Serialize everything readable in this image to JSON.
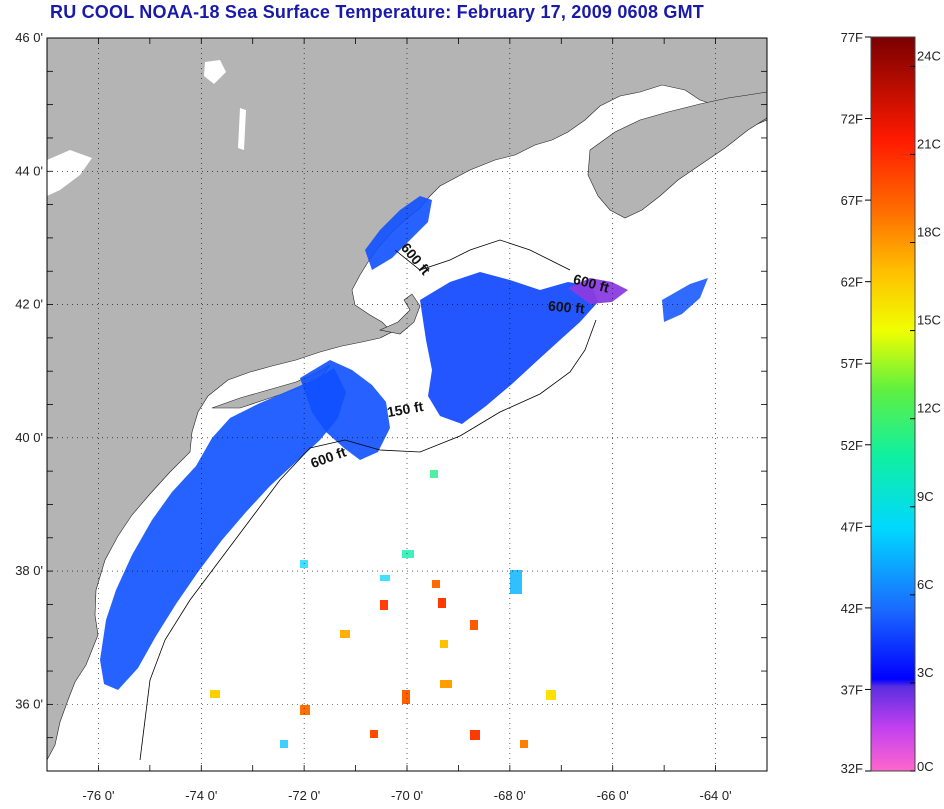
{
  "title": "RU COOL  NOAA-18  Sea Surface Temperature:  February 17, 2009 0608 GMT",
  "map": {
    "lat_ticks": [
      {
        "value": 46,
        "label": "46 0'"
      },
      {
        "value": 44,
        "label": "44 0'"
      },
      {
        "value": 42,
        "label": "42 0'"
      },
      {
        "value": 40,
        "label": "40 0'"
      },
      {
        "value": 38,
        "label": "38 0'"
      },
      {
        "value": 36,
        "label": "36 0'"
      }
    ],
    "lon_ticks": [
      {
        "value": -76,
        "label": "-76 0'"
      },
      {
        "value": -74,
        "label": "-74 0'"
      },
      {
        "value": -72,
        "label": "-72 0'"
      },
      {
        "value": -70,
        "label": "-70 0'"
      },
      {
        "value": -68,
        "label": "-68 0'"
      },
      {
        "value": -66,
        "label": "-66 0'"
      },
      {
        "value": -64,
        "label": "-64 0'"
      }
    ],
    "contour_labels": [
      {
        "text": "600 ft"
      },
      {
        "text": "600 ft"
      },
      {
        "text": "600 ft"
      },
      {
        "text": "150 ft"
      },
      {
        "text": "600 ft"
      }
    ],
    "colors": {
      "land": "#b4b4b4",
      "ocean": "#ffffff",
      "grid": "#000000",
      "title": "#1a1aa8"
    }
  },
  "colorbar": {
    "fahrenheit": [
      {
        "value": 77,
        "label": "77F"
      },
      {
        "value": 72,
        "label": "72F"
      },
      {
        "value": 67,
        "label": "67F"
      },
      {
        "value": 62,
        "label": "62F"
      },
      {
        "value": 57,
        "label": "57F"
      },
      {
        "value": 52,
        "label": "52F"
      },
      {
        "value": 47,
        "label": "47F"
      },
      {
        "value": 42,
        "label": "42F"
      },
      {
        "value": 37,
        "label": "37F"
      },
      {
        "value": 32,
        "label": "32F"
      }
    ],
    "celsius": [
      {
        "value": 24,
        "label": "24C"
      },
      {
        "value": 21,
        "label": "21C"
      },
      {
        "value": 18,
        "label": "18C"
      },
      {
        "value": 15,
        "label": "15C"
      },
      {
        "value": 12,
        "label": "12C"
      },
      {
        "value": 9,
        "label": "9C"
      },
      {
        "value": 6,
        "label": "6C"
      },
      {
        "value": 3,
        "label": "3C"
      },
      {
        "value": 0,
        "label": "0C"
      }
    ]
  }
}
